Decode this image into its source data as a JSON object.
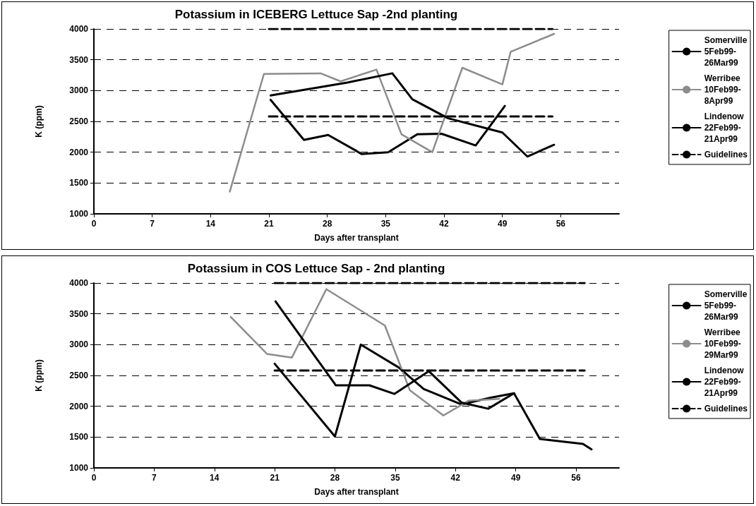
{
  "chart_data": [
    {
      "type": "line",
      "title": "Potassium in ICEBERG Lettuce Sap -2nd planting",
      "xlabel": "Days after transplant",
      "ylabel": "K (ppm)",
      "xlim": [
        0,
        63
      ],
      "xticks": [
        0,
        7,
        14,
        21,
        28,
        35,
        42,
        49,
        56
      ],
      "ylim": [
        1000,
        4000
      ],
      "yticks": [
        1000,
        1500,
        2000,
        2500,
        3000,
        3500,
        4000
      ],
      "grid": "y",
      "legend": "right",
      "marker": "none",
      "series": [
        {
          "name": "Somerville 5Feb99-26Mar99",
          "color": "#000000",
          "x": [
            21.2,
            25.2,
            28.1,
            31.5,
            32.1,
            35.3,
            38.8,
            41.7,
            45.8,
            49.3
          ],
          "values": [
            2850,
            2200,
            2280,
            2020,
            1970,
            2000,
            2290,
            2300,
            2110,
            2750
          ]
        },
        {
          "name": "Werribee 10Feb99-8Apr99",
          "color": "#8c8c8c",
          "x": [
            16.3,
            20.4,
            27.2,
            29.6,
            33.9,
            36.9,
            40.6,
            44.2,
            49,
            50,
            55.2
          ],
          "values": [
            1360,
            3270,
            3280,
            3150,
            3340,
            2290,
            2000,
            3370,
            3100,
            3630,
            3920
          ]
        },
        {
          "name": "Lindenow 22Feb99-21Apr99",
          "color": "#000000",
          "x": [
            21.2,
            30.4,
            35.8,
            38.2,
            42.5,
            49,
            52,
            55.2
          ],
          "values": [
            2920,
            3130,
            3280,
            2860,
            2550,
            2320,
            1930,
            2120
          ]
        },
        {
          "name": "Guidelines",
          "color": "#000000",
          "line_style": "dashed",
          "x": [
            21,
            55
          ],
          "values": [
            2580,
            2580
          ]
        },
        {
          "color": "#000000",
          "line_style": "dashed",
          "x": [
            21,
            55
          ],
          "values": [
            4000,
            4000
          ]
        }
      ]
    },
    {
      "type": "line",
      "title": "Potassium in COS Lettuce Sap - 2nd planting",
      "xlabel": "Days after transplant",
      "ylabel": "K (ppm)",
      "xlim": [
        0,
        61
      ],
      "xticks": [
        0,
        7,
        14,
        21,
        28,
        35,
        42,
        49,
        56
      ],
      "ylim": [
        1000,
        4000
      ],
      "yticks": [
        1000,
        1500,
        2000,
        2500,
        3000,
        3500,
        4000
      ],
      "grid": "y",
      "legend": "right",
      "marker": "none",
      "series": [
        {
          "name": "Somerville 5Feb99-26Mar99",
          "color": "#000000",
          "x": [
            21,
            28,
            31,
            35.4,
            38.3,
            42.7,
            46.1,
            48.8
          ],
          "values": [
            2690,
            1510,
            3000,
            2630,
            2280,
            2030,
            2140,
            2210
          ]
        },
        {
          "name": "Werribee 10Feb99-29Mar99",
          "color": "#8c8c8c",
          "x": [
            15.9,
            20.1,
            23,
            27,
            33.8,
            36.7,
            40.6,
            43.5,
            47.1
          ],
          "values": [
            3450,
            2850,
            2790,
            3900,
            3310,
            2260,
            1850,
            2090,
            2120
          ]
        },
        {
          "name": "Lindenow 22Feb99-21Apr99",
          "color": "#000000",
          "x": [
            21.1,
            28.1,
            32,
            34.9,
            38.9,
            42.7,
            45.8,
            48.8,
            51.8,
            56.8,
            57.8
          ],
          "values": [
            3700,
            2340,
            2340,
            2200,
            2570,
            2060,
            1960,
            2210,
            1470,
            1390,
            1300
          ]
        },
        {
          "name": "Guidelines",
          "color": "#000000",
          "line_style": "dashed",
          "x": [
            21,
            57
          ],
          "values": [
            2580,
            2580
          ]
        },
        {
          "color": "#000000",
          "line_style": "dashed",
          "x": [
            21,
            57
          ],
          "values": [
            4000,
            4000
          ]
        }
      ]
    }
  ]
}
